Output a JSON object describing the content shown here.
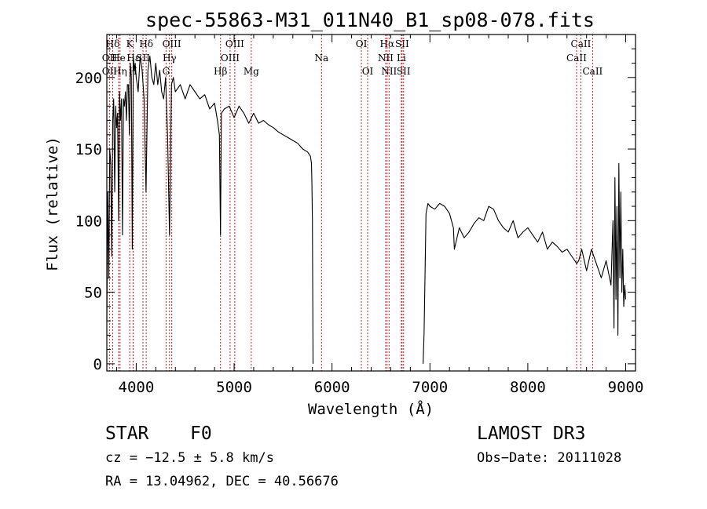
{
  "chart_data": {
    "type": "line",
    "title": "spec-55863-M31_011N40_B1_sp08-078.fits",
    "xlabel": "Wavelength (Å)",
    "ylabel": "Flux (relative)",
    "xlim": [
      3700,
      9100
    ],
    "ylim": [
      -5,
      230
    ],
    "xticks": [
      4000,
      5000,
      6000,
      7000,
      8000,
      9000
    ],
    "yticks": [
      0,
      50,
      100,
      150,
      200
    ],
    "line_color": "#000000",
    "marker_color": "#cc2222",
    "segments": [
      {
        "name": "blue-arm",
        "x": [
          3700,
          3710,
          3720,
          3730,
          3740,
          3750,
          3760,
          3770,
          3780,
          3790,
          3800,
          3810,
          3820,
          3830,
          3840,
          3850,
          3860,
          3870,
          3880,
          3890,
          3900,
          3910,
          3920,
          3930,
          3940,
          3950,
          3960,
          3970,
          3980,
          3990,
          4000,
          4020,
          4040,
          4060,
          4080,
          4100,
          4120,
          4140,
          4160,
          4180,
          4200,
          4220,
          4240,
          4260,
          4280,
          4300,
          4320,
          4340,
          4360,
          4380,
          4400,
          4450,
          4500,
          4550,
          4600,
          4650,
          4700,
          4750,
          4800,
          4830,
          4850,
          4861,
          4870,
          4900,
          4950,
          5000,
          5050,
          5100,
          5150,
          5200,
          5250,
          5300,
          5350,
          5400,
          5450,
          5500,
          5550,
          5600,
          5650,
          5700,
          5750,
          5780,
          5790,
          5795,
          5800,
          5803,
          5806
        ],
        "y": [
          30,
          120,
          60,
          150,
          140,
          75,
          170,
          185,
          120,
          180,
          165,
          175,
          100,
          190,
          170,
          185,
          90,
          185,
          180,
          190,
          170,
          195,
          195,
          160,
          210,
          200,
          80,
          215,
          205,
          210,
          200,
          190,
          215,
          205,
          185,
          120,
          205,
          215,
          200,
          195,
          210,
          195,
          205,
          190,
          185,
          200,
          160,
          90,
          195,
          200,
          190,
          195,
          185,
          195,
          190,
          185,
          188,
          178,
          182,
          170,
          160,
          90,
          175,
          178,
          180,
          172,
          180,
          175,
          168,
          175,
          168,
          170,
          167,
          165,
          162,
          160,
          158,
          156,
          154,
          150,
          148,
          145,
          140,
          125,
          100,
          50,
          0
        ]
      },
      {
        "name": "red-arm",
        "x": [
          6930,
          6940,
          6950,
          6960,
          6980,
          7000,
          7050,
          7100,
          7150,
          7200,
          7240,
          7250,
          7300,
          7350,
          7400,
          7450,
          7500,
          7550,
          7600,
          7650,
          7700,
          7750,
          7800,
          7850,
          7900,
          7950,
          8000,
          8050,
          8100,
          8150,
          8200,
          8250,
          8300,
          8350,
          8400,
          8450,
          8500,
          8520,
          8550,
          8600,
          8650,
          8700,
          8750,
          8800,
          8850,
          8870,
          8880,
          8890,
          8900,
          8910,
          8920,
          8930,
          8940,
          8950,
          8960,
          8970,
          8980,
          8990,
          9000
        ],
        "y": [
          0,
          20,
          60,
          105,
          112,
          110,
          108,
          112,
          110,
          105,
          95,
          80,
          95,
          88,
          92,
          98,
          102,
          100,
          110,
          108,
          100,
          95,
          92,
          100,
          88,
          92,
          95,
          90,
          85,
          92,
          80,
          85,
          82,
          78,
          80,
          75,
          70,
          72,
          80,
          65,
          80,
          70,
          60,
          72,
          55,
          100,
          25,
          130,
          45,
          110,
          20,
          140,
          60,
          120,
          50,
          80,
          40,
          55,
          45
        ]
      }
    ],
    "line_markers": {
      "top": [
        {
          "label": "Hδ",
          "wavelength": 3760
        },
        {
          "label": "K",
          "wavelength": 3934
        },
        {
          "label": "Hδ",
          "wavelength": 4102
        },
        {
          "label": "OIII",
          "wavelength": 4363
        },
        {
          "label": "OIII",
          "wavelength": 5007
        },
        {
          "label": "OI",
          "wavelength": 6300
        },
        {
          "label": "Hα",
          "wavelength": 6563
        },
        {
          "label": "SII",
          "wavelength": 6716
        },
        {
          "label": "CaII",
          "wavelength": 8542
        }
      ],
      "middle": [
        {
          "label": "OII",
          "wavelength": 3727
        },
        {
          "label": "He",
          "wavelength": 3820
        },
        {
          "label": "Hε",
          "wavelength": 3970
        },
        {
          "label": "SII",
          "wavelength": 4069
        },
        {
          "label": "Hγ",
          "wavelength": 4340
        },
        {
          "label": "OIII",
          "wavelength": 4959
        },
        {
          "label": "Na",
          "wavelength": 5893
        },
        {
          "label": "NII",
          "wavelength": 6548
        },
        {
          "label": "Li",
          "wavelength": 6708
        },
        {
          "label": "CaII",
          "wavelength": 8498
        }
      ],
      "bottom": [
        {
          "label": "OII",
          "wavelength": 3727
        },
        {
          "label": "Hη",
          "wavelength": 3835
        },
        {
          "label": "H",
          "wavelength": 3968
        },
        {
          "label": "G",
          "wavelength": 4305
        },
        {
          "label": "Hβ",
          "wavelength": 4861
        },
        {
          "label": "Mg",
          "wavelength": 5175
        },
        {
          "label": "OI",
          "wavelength": 6364
        },
        {
          "label": "NII",
          "wavelength": 6583
        },
        {
          "label": "SII",
          "wavelength": 6731
        },
        {
          "label": "CaII",
          "wavelength": 8662
        }
      ]
    }
  },
  "info": {
    "object_class": "STAR",
    "subclass": "F0",
    "survey": "LAMOST DR3",
    "cz": "cz = −12.5 ± 5.8 km/s",
    "obs_date": "Obs−Date: 20111028",
    "coords": "RA =  13.04962, DEC =  40.56676"
  }
}
